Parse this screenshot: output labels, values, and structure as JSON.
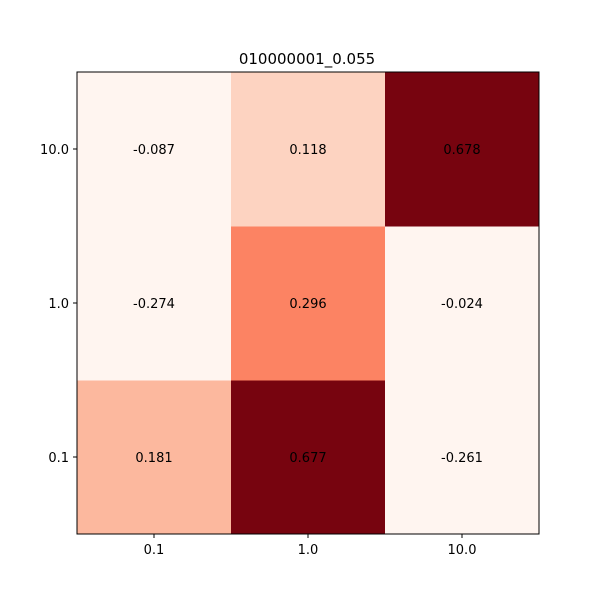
{
  "chart_data": {
    "type": "heatmap",
    "title": "010000001_0.055",
    "x_categories": [
      "0.1",
      "1.0",
      "10.0"
    ],
    "y_categories": [
      "0.1",
      "1.0",
      "10.0"
    ],
    "values": [
      [
        0.181,
        0.677,
        -0.261
      ],
      [
        -0.274,
        0.296,
        -0.024
      ],
      [
        -0.087,
        0.118,
        0.678
      ]
    ],
    "value_labels": [
      [
        "0.181",
        "0.677",
        "-0.261"
      ],
      [
        "-0.274",
        "0.296",
        "-0.024"
      ],
      [
        "-0.087",
        "0.118",
        "0.678"
      ]
    ],
    "colormap": "Reds",
    "color_range": [
      0,
      0.7
    ],
    "y_origin": "bottom",
    "grid": false,
    "legend": "none",
    "colorbar": false
  }
}
